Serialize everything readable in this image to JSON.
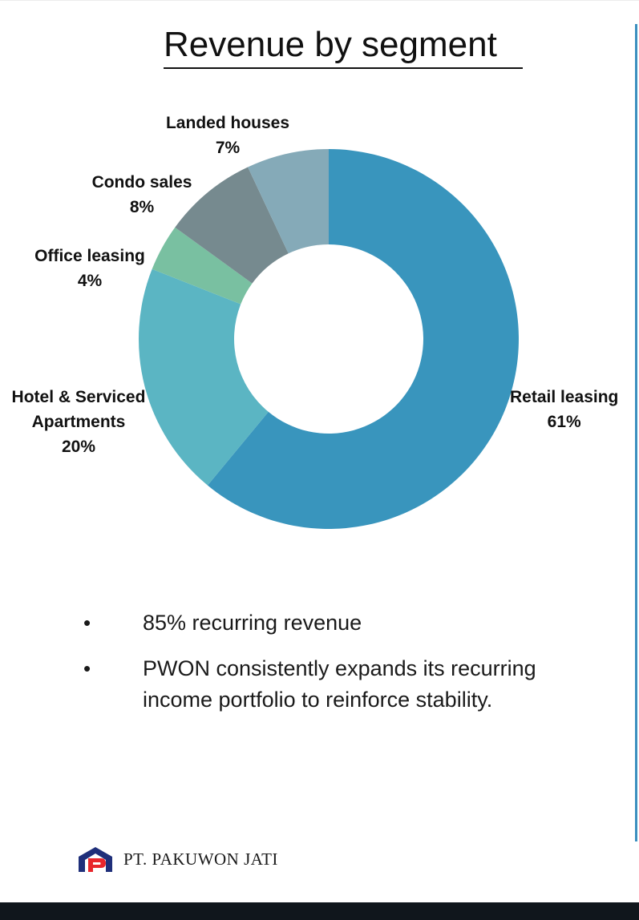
{
  "header": {
    "title": "Revenue by segment"
  },
  "chart_data": {
    "type": "pie",
    "donut": true,
    "title": "Revenue by segment",
    "unit": "%",
    "categories": [
      "Retail leasing",
      "Hotel & Serviced Apartments",
      "Office leasing",
      "Condo sales",
      "Landed houses"
    ],
    "values": [
      61,
      20,
      4,
      8,
      7
    ],
    "colors": [
      "#3995bd",
      "#5bb5c3",
      "#79c0a1",
      "#768a8f",
      "#85aab8"
    ],
    "labels": [
      {
        "name": "Retail leasing",
        "value": "61%"
      },
      {
        "name": "Hotel & Serviced Apartments",
        "line1": "Hotel & Serviced",
        "line2": "Apartments",
        "value": "20%"
      },
      {
        "name": "Office leasing",
        "value": "4%"
      },
      {
        "name": "Condo sales",
        "value": "8%"
      },
      {
        "name": "Landed houses",
        "value": "7%"
      }
    ]
  },
  "bullets": [
    "85% recurring revenue",
    "PWON consistently expands its recurring income portfolio to reinforce stability."
  ],
  "bullet_symbol": "•",
  "footer": {
    "company": "PT. PAKUWON JATI",
    "logo_icon": "pakuwon-logo-icon",
    "logo_colors": [
      "#e8262c",
      "#1f2f7a"
    ]
  }
}
